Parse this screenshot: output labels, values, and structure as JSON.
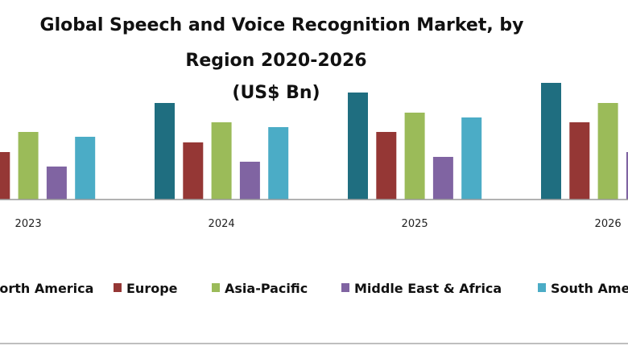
{
  "chart_data": {
    "type": "bar",
    "title_lines": [
      "Global Speech and Voice Recognition Market, by",
      "Region 2020-2026",
      "(US$ Bn)"
    ],
    "categories": [
      "2023",
      "2024",
      "2025",
      "2026"
    ],
    "series": [
      {
        "name": "North America",
        "color": "#1f6e80",
        "values": [
          null,
          120,
          133,
          145
        ]
      },
      {
        "name": "Europe",
        "color": "#953735",
        "values": [
          59,
          71,
          84,
          96
        ]
      },
      {
        "name": "Asia-Pacific",
        "color": "#9bbb59",
        "values": [
          84,
          96,
          108,
          120
        ]
      },
      {
        "name": "Middle East & Africa",
        "color": "#8064a2",
        "values": [
          41,
          47,
          53,
          59
        ]
      },
      {
        "name": "South America",
        "color": "#4bacc6",
        "values": [
          78,
          90,
          102,
          null
        ]
      }
    ],
    "xlabel": "",
    "ylabel": "",
    "grid": false,
    "legend_position": "bottom"
  }
}
